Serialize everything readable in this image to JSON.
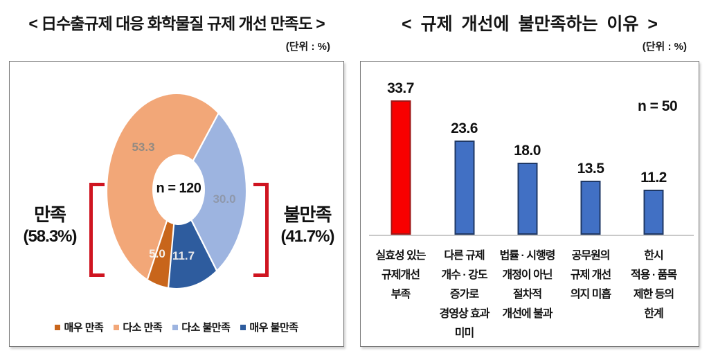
{
  "chart_data": [
    {
      "type": "pie",
      "title": "< 日수출규제 대응 화학물질 규제 개선 만족도 >",
      "unit": "(단위 : %)",
      "sample_label": "n = 120",
      "start_angle_deg": 187,
      "slices": [
        {
          "label": "매우 만족",
          "value": 5.0,
          "display": "5.0",
          "color": "#c8651b"
        },
        {
          "label": "다소 만족",
          "value": 53.3,
          "display": "53.3",
          "color": "#f2a778"
        },
        {
          "label": "다소 불만족",
          "value": 30.0,
          "display": "30.0",
          "color": "#9db4e0"
        },
        {
          "label": "매우 불만족",
          "value": 11.7,
          "display": "11.7",
          "color": "#2e5c9e"
        }
      ],
      "groups": [
        {
          "label": "만족",
          "pct": "(58.3%)"
        },
        {
          "label": "불만족",
          "pct": "(41.7%)"
        }
      ],
      "bracket_color": "#cf1420",
      "legend_position": "bottom"
    },
    {
      "type": "bar",
      "title": "< 규제 개선에 불만족하는 이유 >",
      "unit": "(단위 : %)",
      "sample_label": "n = 50",
      "categories": [
        [
          "실효성 있는",
          "규제개선",
          "부족"
        ],
        [
          "다른 규제",
          "개수 · 강도",
          "증가로",
          "경영상 효과",
          "미미"
        ],
        [
          "법률 · 시행령",
          "개정이 아닌",
          "절차적",
          "개선에 불과"
        ],
        [
          "공무원의",
          "규제 개선",
          "의지 미흡"
        ],
        [
          "한시",
          "적용 · 품목",
          "제한 등의",
          "한계"
        ]
      ],
      "values": [
        33.7,
        23.6,
        18.0,
        13.5,
        11.2
      ],
      "displays": [
        "33.7",
        "23.6",
        "18.0",
        "13.5",
        "11.2"
      ],
      "bar_colors": [
        "#f80000",
        "#4170c4",
        "#4170c4",
        "#4170c4",
        "#4170c4"
      ],
      "bar_borders": [
        "#9e1616",
        "#1f3864",
        "#1f3864",
        "#1f3864",
        "#1f3864"
      ],
      "ylim": [
        0,
        40
      ],
      "grid": false
    }
  ]
}
